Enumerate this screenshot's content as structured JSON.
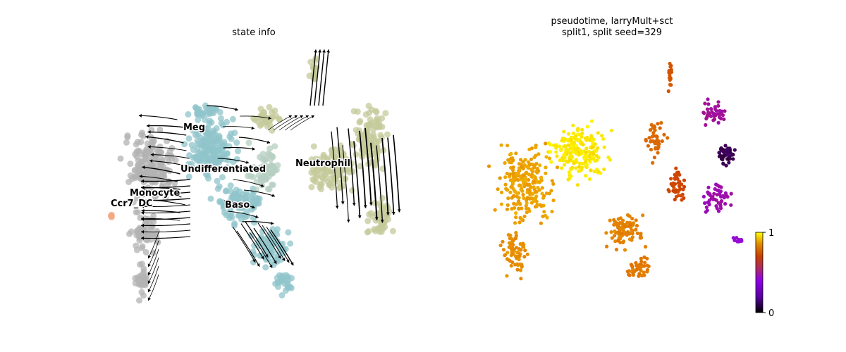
{
  "chart_data": [
    {
      "type": "scatter",
      "title": "state info",
      "point_encoding": "categorical",
      "streamlines": true,
      "legend": "on data",
      "categories": [
        "Ccr7_DC",
        "Monocyte",
        "Meg",
        "Undifferentiated",
        "Baso",
        "Neutrophil"
      ],
      "labels": [
        {
          "id": "Meg",
          "text": "Meg"
        },
        {
          "id": "Undifferentiated",
          "text": "Undifferentiated"
        },
        {
          "id": "Neutrophil",
          "text": "Neutrophil"
        },
        {
          "id": "Monocyte",
          "text": "Monocyte"
        },
        {
          "id": "Ccr7_DC",
          "text": "Ccr7_DC"
        },
        {
          "id": "Baso",
          "text": "Baso"
        }
      ],
      "colors": {
        "Monocyte": "#b3b3b3",
        "Undifferentiated": "#8fc4cb",
        "Meg": "#8fc4cb",
        "Neutrophil": "#c4c99a",
        "Baso": "#b5cfc2",
        "Ccr7_DC": "#f4a582",
        "streamline": "#000000"
      },
      "axes": "off"
    },
    {
      "type": "scatter",
      "title_lines": [
        "pseudotime, larryMult+sct",
        "split1, split seed=329"
      ],
      "point_encoding": "continuous",
      "colormap": "gnuplot",
      "colorbar": {
        "min": 0,
        "max": 1,
        "ticks": [
          "1",
          "0"
        ]
      },
      "axes": "off"
    }
  ]
}
